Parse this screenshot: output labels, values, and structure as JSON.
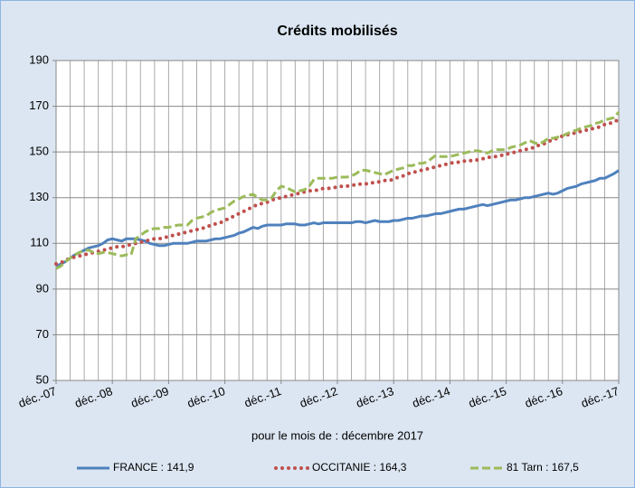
{
  "chart_data": {
    "type": "line",
    "title": "Crédits mobilisés",
    "x_label": "pour le mois de :  décembre 2017",
    "categories": [
      "déc.-07",
      null,
      null,
      null,
      null,
      null,
      null,
      null,
      null,
      null,
      null,
      null,
      "déc.-08",
      null,
      null,
      null,
      null,
      null,
      null,
      null,
      null,
      null,
      null,
      null,
      "déc.-09",
      null,
      null,
      null,
      null,
      null,
      null,
      null,
      null,
      null,
      null,
      null,
      "déc.-10",
      null,
      null,
      null,
      null,
      null,
      null,
      null,
      null,
      null,
      null,
      null,
      "déc.-11",
      null,
      null,
      null,
      null,
      null,
      null,
      null,
      null,
      null,
      null,
      null,
      "déc.-12",
      null,
      null,
      null,
      null,
      null,
      null,
      null,
      null,
      null,
      null,
      null,
      "déc.-13",
      null,
      null,
      null,
      null,
      null,
      null,
      null,
      null,
      null,
      null,
      null,
      "déc.-14",
      null,
      null,
      null,
      null,
      null,
      null,
      null,
      null,
      null,
      null,
      null,
      "déc.-15",
      null,
      null,
      null,
      null,
      null,
      null,
      null,
      null,
      null,
      null,
      null,
      "déc.-16",
      null,
      null,
      null,
      null,
      null,
      null,
      null,
      null,
      null,
      null,
      null,
      "déc.-17"
    ],
    "series": [
      {
        "name": "FRANCE : 141,9",
        "color": "#4f81bd",
        "style": "solid",
        "values": [
          100,
          101,
          102,
          103.5,
          105,
          106,
          107,
          108,
          108.5,
          109,
          110,
          111.5,
          112,
          111.5,
          111,
          112,
          112,
          112,
          111.5,
          111,
          110,
          109.5,
          109,
          109,
          109.5,
          110,
          110,
          110,
          110,
          110.5,
          111,
          111,
          111,
          111.5,
          112,
          112,
          112.5,
          113,
          113.5,
          114.5,
          115,
          116,
          117,
          116.5,
          117.5,
          118,
          118,
          118,
          118,
          118.5,
          118.5,
          118.5,
          118,
          118,
          118.5,
          119,
          118.5,
          119,
          119,
          119,
          119,
          119,
          119,
          119,
          119.5,
          119.5,
          119,
          119.5,
          120,
          119.5,
          119.5,
          119.5,
          120,
          120,
          120.5,
          121,
          121,
          121.5,
          122,
          122,
          122.5,
          123,
          123,
          123.5,
          124,
          124.5,
          125,
          125,
          125.5,
          126,
          126.5,
          127,
          126.5,
          127,
          127.5,
          128,
          128.5,
          129,
          129,
          129.5,
          130,
          130,
          130.5,
          131,
          131.5,
          132,
          131.5,
          132,
          133,
          134,
          134.5,
          135,
          136,
          136.5,
          137,
          137.5,
          138.5,
          138.5,
          139.5,
          140.5,
          141.9
        ]
      },
      {
        "name": "OCCITANIE : 164,3",
        "color": "#c0504d",
        "style": "dotted",
        "values": [
          101,
          101.5,
          102.5,
          103.5,
          104,
          104.5,
          105,
          105.5,
          106,
          106.5,
          107,
          107.5,
          108,
          108.5,
          108.5,
          109,
          109.5,
          110,
          110.5,
          111,
          111.5,
          112,
          112,
          112.5,
          113,
          113.5,
          114,
          114.5,
          115,
          115.5,
          116,
          116.5,
          117,
          118,
          118.5,
          119,
          120,
          121,
          122,
          123,
          124,
          125,
          126,
          127,
          127.5,
          128,
          129,
          129.5,
          130,
          130.5,
          131,
          131.5,
          132,
          132.5,
          133,
          133,
          133.5,
          134,
          134,
          134.5,
          134.5,
          135,
          135,
          135.5,
          135.5,
          136,
          136,
          136.5,
          136.5,
          137,
          137.5,
          137.5,
          138,
          139,
          139.5,
          140.5,
          141,
          141.5,
          142,
          142.5,
          143,
          143.5,
          144,
          144.5,
          145,
          145.5,
          145.5,
          146,
          146,
          146.5,
          146.5,
          147,
          147.5,
          148,
          148,
          148.5,
          149,
          149.5,
          150,
          150.5,
          151,
          151.5,
          152,
          153,
          153.5,
          154.5,
          155.5,
          156,
          157,
          157.5,
          158,
          158.5,
          159,
          159.5,
          160,
          160.5,
          161,
          162,
          162.5,
          163,
          164.3
        ]
      },
      {
        "name": "81 Tarn : 167,5",
        "color": "#9bbb59",
        "style": "dashed",
        "values": [
          99,
          100,
          102,
          103.5,
          105,
          106,
          107,
          107,
          106,
          105.5,
          106,
          106,
          105.5,
          105,
          104.5,
          105,
          105,
          112,
          113.5,
          115,
          116,
          116.5,
          116.5,
          117,
          117,
          117.5,
          118,
          118,
          118,
          120,
          121,
          121.5,
          122,
          123.5,
          124.5,
          125,
          125.5,
          127,
          128.5,
          129.5,
          130.5,
          131,
          131.5,
          130,
          129,
          129,
          130,
          133,
          135,
          134.5,
          133.5,
          132.5,
          133,
          133.5,
          135,
          138,
          138.5,
          138.5,
          138.5,
          138.5,
          139,
          139,
          139,
          139.5,
          140.5,
          142,
          142,
          141.5,
          141,
          140.5,
          140,
          141,
          142,
          142.5,
          143,
          144,
          144,
          145,
          145,
          145.5,
          147,
          148.5,
          148,
          148,
          148,
          148.5,
          149,
          149.5,
          150,
          150.5,
          150.5,
          150,
          149.5,
          150.5,
          151,
          151,
          151,
          152,
          152.5,
          153,
          154,
          155,
          154,
          153.5,
          154.5,
          156,
          156,
          156.5,
          157,
          158,
          159,
          159.5,
          160.5,
          161,
          161.5,
          162.5,
          163,
          164,
          164.5,
          165,
          167.5
        ]
      }
    ],
    "ylim": [
      50,
      190
    ],
    "yticks": [
      50,
      70,
      90,
      110,
      130,
      150,
      170,
      190
    ],
    "grid": true,
    "legend": "bottom"
  }
}
